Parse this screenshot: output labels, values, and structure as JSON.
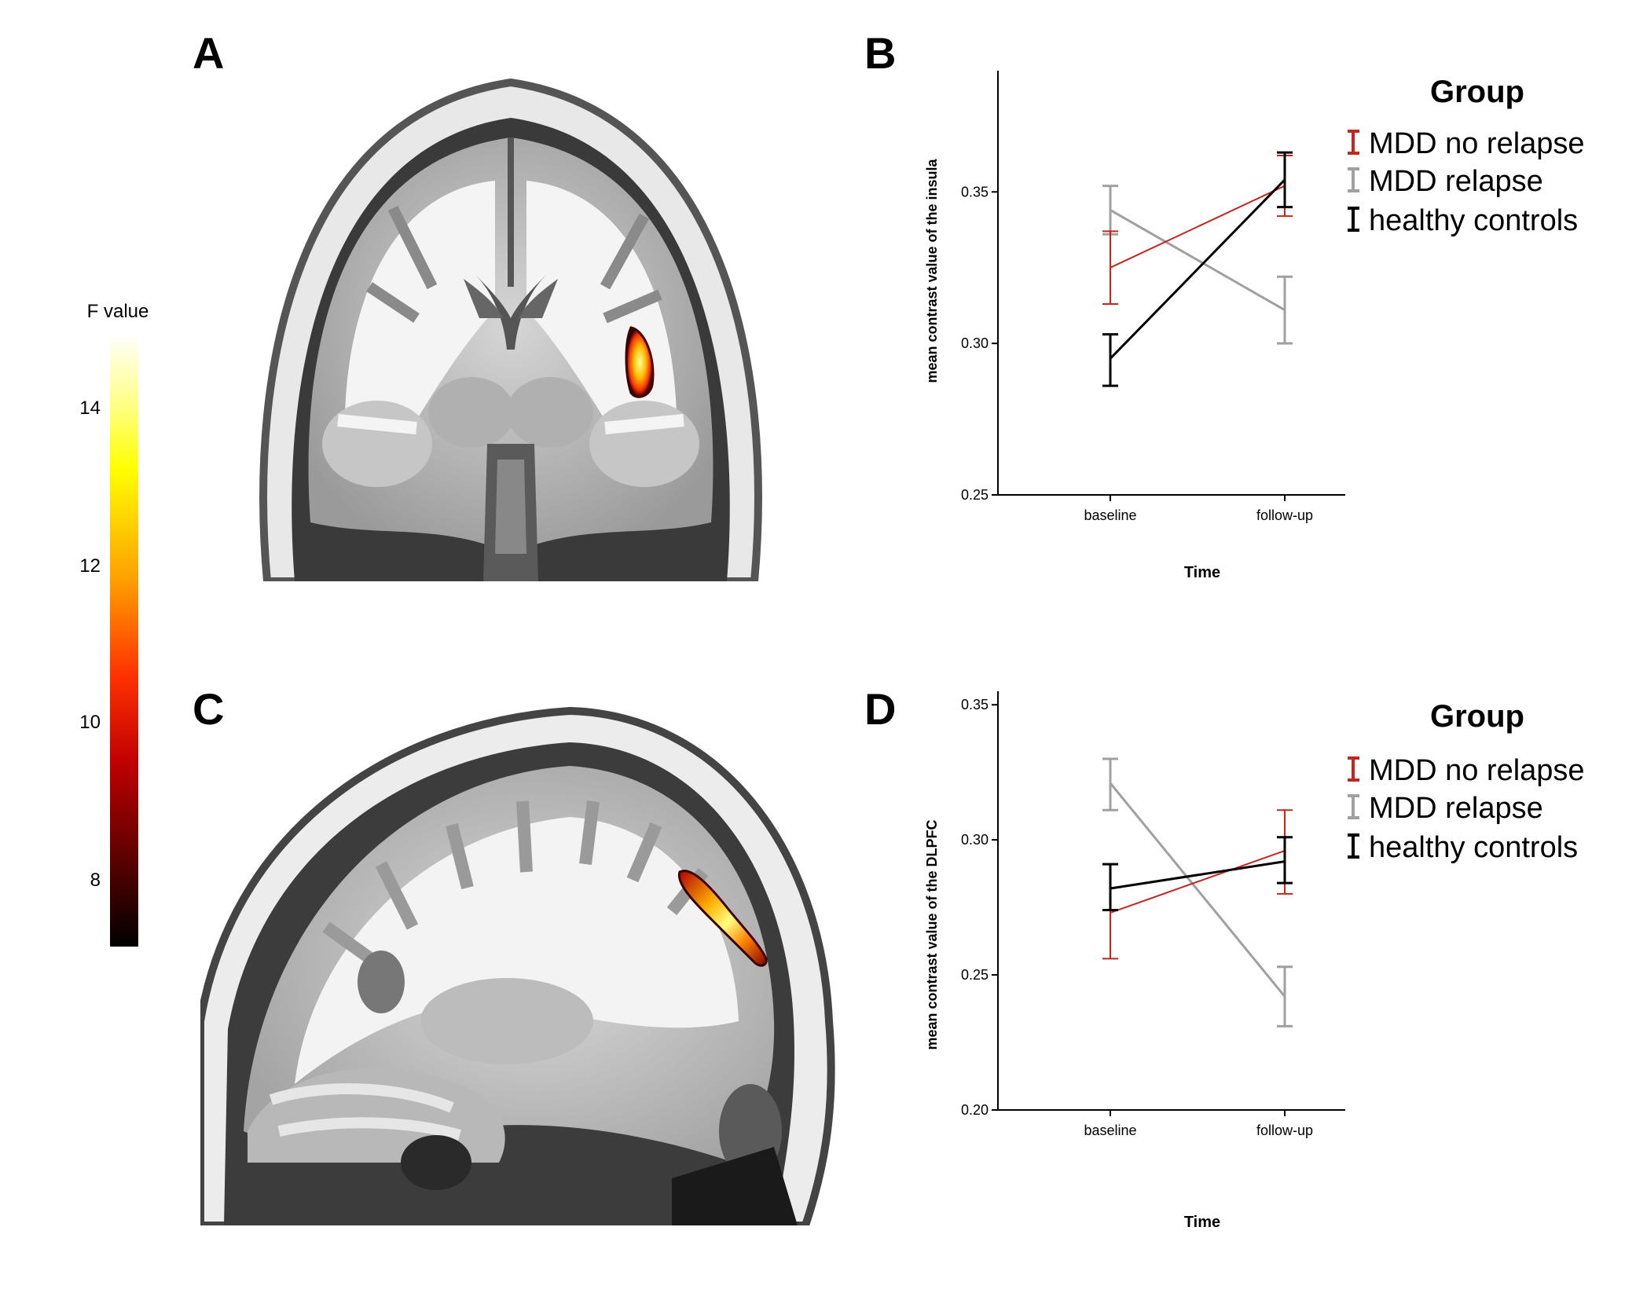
{
  "panels": {
    "a": "A",
    "b": "B",
    "c": "C",
    "d": "D"
  },
  "colorbar": {
    "title": "F value",
    "ticks": [
      "14",
      "12",
      "10",
      "8"
    ],
    "tick_values": [
      14,
      12,
      10,
      8
    ],
    "range": [
      7.3,
      15.0
    ],
    "colors": [
      "#ffffff",
      "#ffff00",
      "#ff8000",
      "#ff0000",
      "#800000",
      "#000000"
    ]
  },
  "legend": {
    "title": "Group",
    "items": [
      {
        "label": "MDD no relapse",
        "color": "#c0281e"
      },
      {
        "label": "MDD relapse",
        "color": "#a0a0a0"
      },
      {
        "label": "healthy controls",
        "color": "#000000"
      }
    ]
  },
  "chart_data": [
    {
      "type": "line",
      "panel": "B",
      "xlabel": "Time",
      "ylabel": "mean contrast value of the insula",
      "categories": [
        "baseline",
        "follow-up"
      ],
      "ylim": [
        0.25,
        0.39
      ],
      "yticks": [
        0.25,
        0.3,
        0.35
      ],
      "ytick_labels": [
        "0.25",
        "0.30",
        "0.35"
      ],
      "series": [
        {
          "name": "MDD no relapse",
          "color": "#c0281e",
          "values": [
            0.325,
            0.352
          ],
          "err_low": [
            0.313,
            0.342
          ],
          "err_high": [
            0.337,
            0.362
          ],
          "stroke": 2
        },
        {
          "name": "MDD relapse",
          "color": "#a0a0a0",
          "values": [
            0.344,
            0.311
          ],
          "err_low": [
            0.336,
            0.3
          ],
          "err_high": [
            0.352,
            0.322
          ],
          "stroke": 3
        },
        {
          "name": "healthy controls",
          "color": "#000000",
          "values": [
            0.295,
            0.354
          ],
          "err_low": [
            0.286,
            0.345
          ],
          "err_high": [
            0.303,
            0.363
          ],
          "stroke": 3
        }
      ]
    },
    {
      "type": "line",
      "panel": "D",
      "xlabel": "Time",
      "ylabel": "mean contrast value of the DLPFC",
      "categories": [
        "baseline",
        "follow-up"
      ],
      "ylim": [
        0.2,
        0.355
      ],
      "yticks": [
        0.2,
        0.25,
        0.3,
        0.35
      ],
      "ytick_labels": [
        "0.20",
        "0.25",
        "0.30",
        "0.35"
      ],
      "series": [
        {
          "name": "MDD no relapse",
          "color": "#c0281e",
          "values": [
            0.273,
            0.296
          ],
          "err_low": [
            0.256,
            0.28
          ],
          "err_high": [
            0.291,
            0.311
          ],
          "stroke": 2
        },
        {
          "name": "MDD relapse",
          "color": "#a0a0a0",
          "values": [
            0.321,
            0.242
          ],
          "err_low": [
            0.311,
            0.231
          ],
          "err_high": [
            0.33,
            0.253
          ],
          "stroke": 3
        },
        {
          "name": "healthy controls",
          "color": "#000000",
          "values": [
            0.282,
            0.292
          ],
          "err_low": [
            0.274,
            0.284
          ],
          "err_high": [
            0.291,
            0.301
          ],
          "stroke": 3
        }
      ]
    }
  ]
}
